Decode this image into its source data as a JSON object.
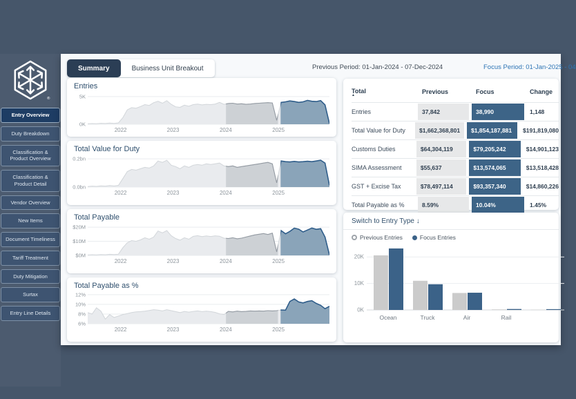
{
  "colors": {
    "background": "#46566a",
    "sidebar_bg": "#4c5b6f",
    "nav_item_bg": "#3e5471",
    "nav_active_bg": "#1e3d64",
    "panel_bg": "#f7f9fb",
    "tab_active_bg": "#2b3e55",
    "focus_blue": "#3d6487",
    "focus_text_blue": "#2e75b5",
    "previous_gray": "#cbcbcb",
    "area_light_fill": "#e9ebee",
    "area_light_stroke": "#d2d6da",
    "area_prev_fill": "#cdd1d5",
    "area_prev_stroke": "#939aa2",
    "area_focus_fill": "#8aa4b9",
    "area_focus_stroke": "#2f5d8a"
  },
  "sidebar": {
    "items": [
      {
        "label": "Entry Overview",
        "active": true
      },
      {
        "label": "Duty Breakdown",
        "active": false
      },
      {
        "label": "Classification & Product Overview",
        "active": false
      },
      {
        "label": "Classification & Product Detail",
        "active": false
      },
      {
        "label": "Vendor Overview",
        "active": false
      },
      {
        "label": "New Items",
        "active": false
      },
      {
        "label": "Document Timeliness",
        "active": false
      },
      {
        "label": "Tariff Treatment",
        "active": false
      },
      {
        "label": "Duty Mitigation",
        "active": false
      },
      {
        "label": "Surtax",
        "active": false
      },
      {
        "label": "Entry Line Details",
        "active": false
      }
    ]
  },
  "tabs": [
    {
      "label": "Summary",
      "active": true
    },
    {
      "label": "Business Unit Breakout",
      "active": false
    }
  ],
  "header": {
    "previous_period": "Previous Period: 01-Jan-2024 - 07-Dec-2024",
    "focus_period": "Focus Period: 01-Jan-2025 - 04"
  },
  "comparison_table": {
    "columns": [
      "Total",
      "Previous",
      "Focus",
      "Change"
    ],
    "rows": [
      {
        "label": "Entries",
        "previous": "37,842",
        "focus": "38,990",
        "change": "1,148"
      },
      {
        "label": "Total Value for Duty",
        "previous": "$1,662,368,801",
        "focus": "$1,854,187,881",
        "change": "$191,819,080"
      },
      {
        "label": "Customs Duties",
        "previous": "$64,304,119",
        "focus": "$79,205,242",
        "change": "$14,901,123"
      },
      {
        "label": "SIMA Assessment",
        "previous": "$55,637",
        "focus": "$13,574,065",
        "change": "$13,518,428"
      },
      {
        "label": "GST + Excise Tax",
        "previous": "$78,497,114",
        "focus": "$93,357,340",
        "change": "$14,860,226"
      },
      {
        "label": "Total Payable as %",
        "previous": "8.59%",
        "focus": "10.04%",
        "change": "1.45%"
      }
    ]
  },
  "chart_data": [
    {
      "type": "area",
      "title": "Entries",
      "y_min": 0,
      "y_max": 5.6,
      "y_ticks": [
        {
          "label": "0K",
          "value": 0
        },
        {
          "label": "5K",
          "value": 5
        }
      ],
      "x_ticks": [
        {
          "label": "2022",
          "f": 0.136
        },
        {
          "label": "2023",
          "f": 0.353
        },
        {
          "label": "2024",
          "f": 0.571
        },
        {
          "label": "2025",
          "f": 0.789
        }
      ],
      "highlight_previous": [
        0.572,
        0.787
      ],
      "highlight_focus": [
        0.798,
        1.0
      ],
      "values": [
        0.08,
        0.12,
        0.1,
        0.18,
        0.14,
        0.22,
        0.16,
        0.25,
        1.2,
        2.6,
        3.0,
        2.9,
        3.2,
        3.55,
        3.4,
        3.9,
        4.15,
        3.8,
        4.25,
        3.6,
        3.15,
        3.05,
        3.45,
        3.25,
        3.55,
        3.65,
        3.5,
        3.6,
        3.55,
        3.65,
        3.95,
        3.6,
        3.75,
        3.8,
        3.65,
        3.7,
        3.6,
        3.65,
        3.75,
        3.8,
        3.85,
        3.9,
        3.85,
        0.7,
        3.95,
        4.05,
        4.2,
        4.1,
        3.95,
        4.05,
        4.3,
        4.15,
        4.1,
        4.25,
        3.5,
        0.12
      ]
    },
    {
      "type": "area",
      "title": "Total Value for Duty",
      "y_min": 0,
      "y_max": 0.22,
      "y_ticks": [
        {
          "label": "0.0bn",
          "value": 0
        },
        {
          "label": "0.2bn",
          "value": 0.2
        }
      ],
      "x_ticks": [
        {
          "label": "2022",
          "f": 0.136
        },
        {
          "label": "2023",
          "f": 0.353
        },
        {
          "label": "2024",
          "f": 0.571
        },
        {
          "label": "2025",
          "f": 0.789
        }
      ],
      "highlight_previous": [
        0.572,
        0.787
      ],
      "highlight_focus": [
        0.798,
        1.0
      ],
      "values": [
        0.004,
        0.007,
        0.005,
        0.009,
        0.007,
        0.011,
        0.008,
        0.012,
        0.06,
        0.11,
        0.125,
        0.12,
        0.13,
        0.14,
        0.135,
        0.15,
        0.185,
        0.175,
        0.19,
        0.155,
        0.145,
        0.13,
        0.15,
        0.14,
        0.155,
        0.16,
        0.155,
        0.165,
        0.16,
        0.165,
        0.17,
        0.15,
        0.145,
        0.15,
        0.14,
        0.145,
        0.15,
        0.155,
        0.16,
        0.165,
        0.17,
        0.175,
        0.165,
        0.03,
        0.185,
        0.18,
        0.178,
        0.182,
        0.178,
        0.18,
        0.183,
        0.18,
        0.185,
        0.19,
        0.17,
        0.012
      ]
    },
    {
      "type": "area",
      "title": "Total Payable",
      "y_min": 0,
      "y_max": 22,
      "y_ticks": [
        {
          "label": "$0M",
          "value": 0
        },
        {
          "label": "$10M",
          "value": 10
        },
        {
          "label": "$20M",
          "value": 20
        }
      ],
      "x_ticks": [
        {
          "label": "2022",
          "f": 0.136
        },
        {
          "label": "2023",
          "f": 0.353
        },
        {
          "label": "2024",
          "f": 0.571
        },
        {
          "label": "2025",
          "f": 0.789
        }
      ],
      "highlight_previous": [
        0.572,
        0.787
      ],
      "highlight_focus": [
        0.798,
        1.0
      ],
      "values": [
        0.3,
        0.5,
        0.4,
        0.6,
        0.5,
        0.8,
        0.6,
        0.9,
        5.5,
        9,
        10.5,
        10,
        11,
        12.5,
        11.5,
        13,
        17.3,
        16,
        17.6,
        14,
        12,
        10.8,
        12.5,
        11.5,
        13.5,
        14,
        13.3,
        13.8,
        13.4,
        13.9,
        13.6,
        12.2,
        12,
        12.5,
        11.8,
        12.2,
        13,
        13.8,
        14.5,
        15,
        15.5,
        14.8,
        15.8,
        2.5,
        17.6,
        15.3,
        17,
        19.3,
        18.6,
        16.6,
        18,
        19.4,
        18.5,
        18.9,
        13,
        0.4
      ]
    },
    {
      "type": "area",
      "title": "Total Payable as %",
      "y_min": 6,
      "y_max": 12.4,
      "y_ticks": [
        {
          "label": "6%",
          "value": 6
        },
        {
          "label": "8%",
          "value": 8
        },
        {
          "label": "10%",
          "value": 10
        },
        {
          "label": "12%",
          "value": 12
        }
      ],
      "x_ticks": [
        {
          "label": "2022",
          "f": 0.136
        },
        {
          "label": "2023",
          "f": 0.353
        },
        {
          "label": "2024",
          "f": 0.571
        },
        {
          "label": "2025",
          "f": 0.789
        }
      ],
      "highlight_previous": [
        0.572,
        0.787
      ],
      "highlight_focus": [
        0.798,
        1.0
      ],
      "values": [
        8.3,
        8.0,
        9.3,
        8.6,
        6.95,
        7.9,
        7.3,
        7.6,
        7.9,
        8.1,
        8.3,
        8.45,
        8.5,
        8.6,
        8.75,
        8.9,
        8.8,
        8.65,
        8.9,
        8.7,
        8.5,
        8.3,
        8.55,
        8.4,
        8.55,
        8.65,
        8.5,
        8.6,
        8.5,
        8.35,
        8.05,
        7.9,
        8.55,
        8.45,
        8.6,
        8.5,
        8.55,
        8.65,
        8.6,
        8.65,
        8.6,
        8.7,
        8.65,
        8.7,
        8.85,
        8.8,
        10.6,
        11.1,
        10.5,
        10.3,
        10.6,
        10.75,
        10.2,
        9.8,
        9.1,
        9.6
      ]
    },
    {
      "type": "bar",
      "title": "Switch to Entry Type ↓",
      "legend": [
        {
          "name": "Previous Entries",
          "color": "#cbcbcb"
        },
        {
          "name": "Focus Entries",
          "color": "#3b6288"
        }
      ],
      "categories": [
        "Ocean",
        "Truck",
        "Air",
        "Rail",
        ""
      ],
      "series": [
        {
          "name": "Previous Entries",
          "values": [
            20.6,
            11.0,
            6.4,
            0.2,
            0.1
          ]
        },
        {
          "name": "Focus Entries",
          "values": [
            23.2,
            9.7,
            6.5,
            0.35,
            0.3
          ]
        }
      ],
      "y_ticks": [
        {
          "label": "0K",
          "value": 0
        },
        {
          "label": "10K",
          "value": 10
        },
        {
          "label": "20K",
          "value": 20
        }
      ],
      "y_max": 25
    }
  ]
}
